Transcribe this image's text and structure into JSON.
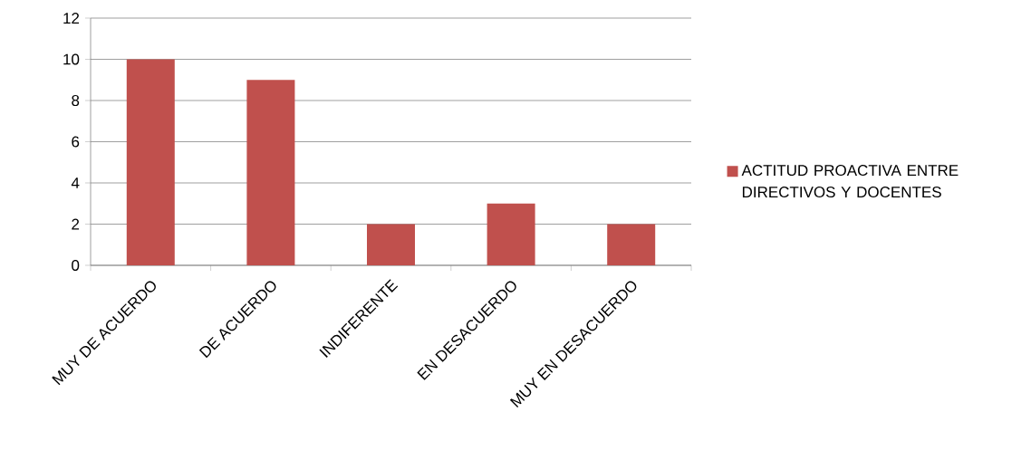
{
  "chart_data": {
    "type": "bar",
    "categories": [
      "MUY DE ACUERDO",
      "DE ACUERDO",
      "INDIFERENTE",
      "EN DESACUERDO",
      "MUY EN DESACUERDO"
    ],
    "series": [
      {
        "name": "ACTITUD PROACTIVA ENTRE DIRECTIVOS Y DOCENTES",
        "color": "#c0504d",
        "values": [
          10,
          9,
          2,
          3,
          2
        ]
      }
    ],
    "ylim": [
      0,
      12
    ],
    "yticks": [
      0,
      2,
      4,
      6,
      8,
      10,
      12
    ],
    "grid": "y",
    "legend": "right"
  }
}
